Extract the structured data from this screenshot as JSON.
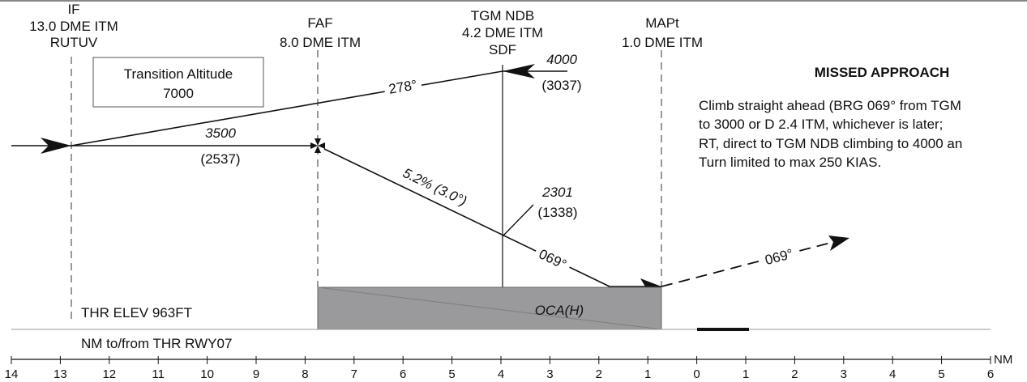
{
  "fixes": {
    "if": {
      "name": "IF",
      "dme": "13.0 DME ITM",
      "ident": "RUTUV"
    },
    "faf": {
      "name": "FAF",
      "dme": "8.0 DME ITM"
    },
    "ndb": {
      "name": "TGM NDB",
      "dme": "4.2  DME ITM",
      "ident": "SDF"
    },
    "mapt": {
      "name": "MAPt",
      "dme": "1.0 DME ITM"
    }
  },
  "transition_box": {
    "line1": "Transition Altitude",
    "line2": "7000"
  },
  "procedure": {
    "outbound_track": "278°",
    "ndb_altitude": "4000",
    "ndb_height": "(3037)",
    "initial_altitude": "3500",
    "initial_height": "(2537)",
    "glide_slope": "5.2% (3.0°)",
    "stepdown_altitude": "2301",
    "stepdown_height": "(1338)",
    "final_track": "069°",
    "missed_track": "069°"
  },
  "missed_approach": {
    "title": "MISSED APPROACH",
    "lines": [
      "Climb straight ahead (BRG 069° from TGM",
      "to 3000 or D 2.4 ITM, whichever is later;",
      "RT, direct to TGM NDB climbing to 4000 an",
      "Turn limited to max 250 KIAS."
    ]
  },
  "profile": {
    "oca_label": "OCA(H)",
    "thr_elev": "THR ELEV 963FT",
    "distance_caption": "NM to/from THR RWY07"
  },
  "scale": {
    "unit": "NM",
    "ticks": [
      "14",
      "13",
      "12",
      "11",
      "10",
      "9",
      "8",
      "7",
      "6",
      "5",
      "4",
      "3",
      "2",
      "1",
      "0",
      "1",
      "2",
      "3",
      "4",
      "5",
      "6"
    ]
  },
  "colors": {
    "oca_fill": "#9a9a9c",
    "ink": "#111111"
  }
}
